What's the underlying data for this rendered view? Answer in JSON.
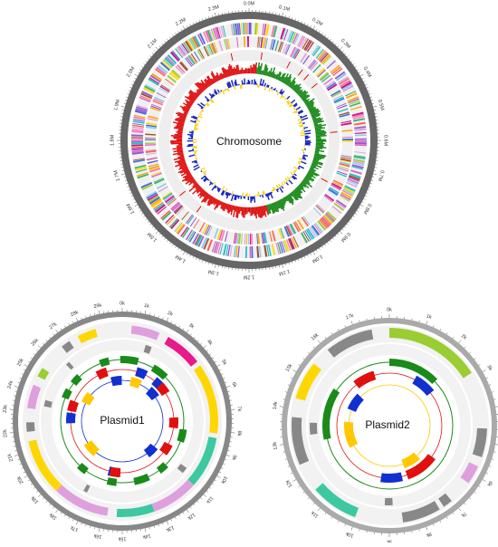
{
  "chromosome": {
    "label": "Chromosome",
    "ticks": [
      "0.0M",
      "0.1M",
      "0.2M",
      "0.3M",
      "0.4M",
      "0.5M",
      "0.6M",
      "0.7M",
      "0.8M",
      "0.9M",
      "1.0M",
      "1.1M",
      "1.2M",
      "1.3M",
      "1.4M",
      "1.5M",
      "1.6M",
      "1.7M",
      "1.8M",
      "1.9M",
      "2.0M",
      "2.1M",
      "2.2M",
      "2.3M"
    ]
  },
  "plasmid1": {
    "label": "Plasmid1",
    "ticks": [
      "0k",
      "1k",
      "2k",
      "3k",
      "4k",
      "5k",
      "6k",
      "7k",
      "8k",
      "9k",
      "10k",
      "11k",
      "12k",
      "13k",
      "14k",
      "15k",
      "16k",
      "17k",
      "18k",
      "19k",
      "20k",
      "21k",
      "22k",
      "23k",
      "24k",
      "25k",
      "26k",
      "27k",
      "28k",
      "29k"
    ]
  },
  "plasmid2": {
    "label": "Plasmid2",
    "ticks": [
      "0k",
      "1k",
      "2k",
      "3k",
      "4k",
      "5k",
      "6k",
      "7k",
      "8k",
      "9k",
      "10k",
      "11k",
      "12k",
      "13k",
      "14k",
      "15k",
      "16k",
      "17k"
    ]
  }
}
